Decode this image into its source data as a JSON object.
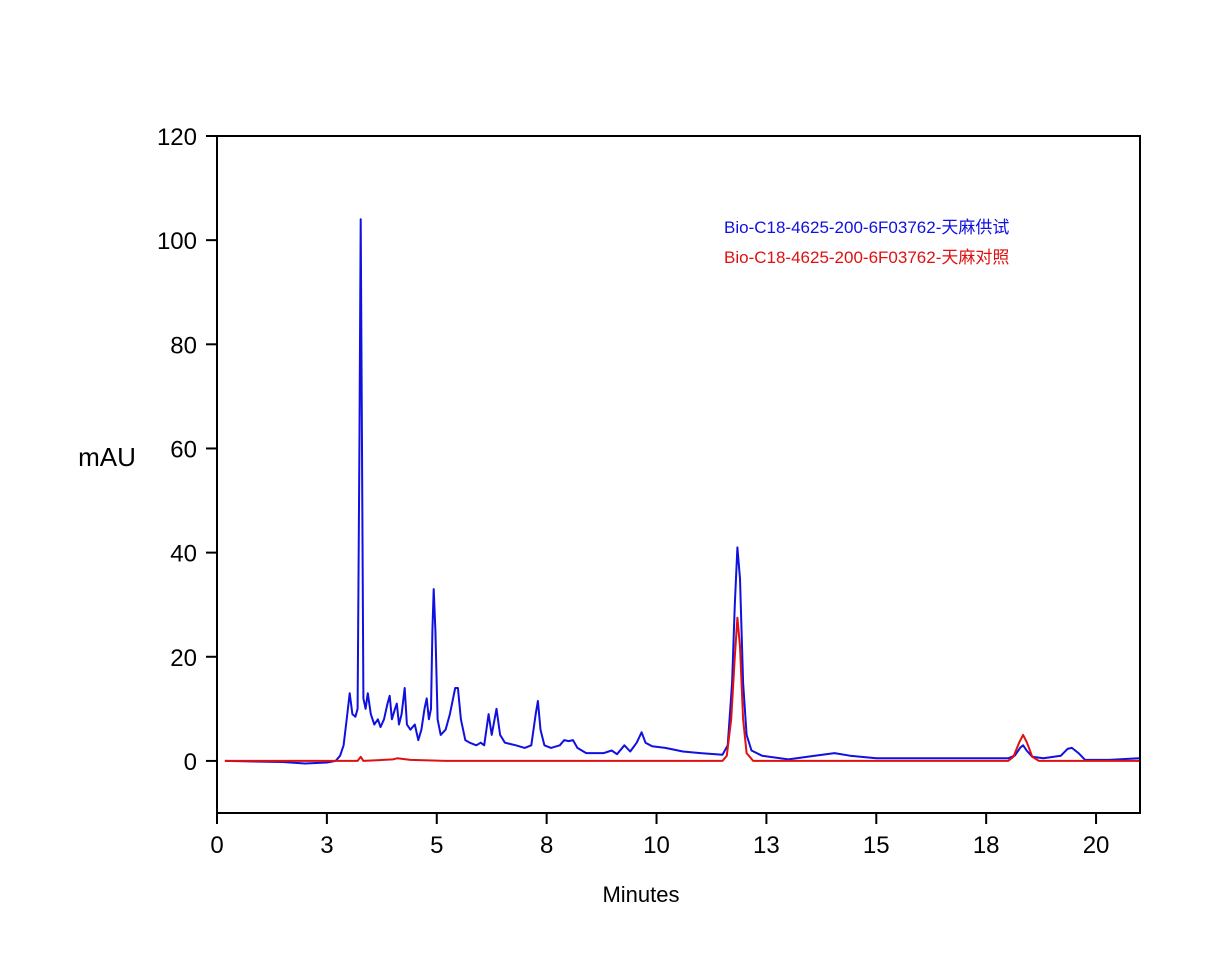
{
  "chart_data": {
    "type": "line",
    "title": "",
    "xlabel": "Minutes",
    "ylabel": "mAU",
    "xlim": [
      0,
      21
    ],
    "ylim": [
      -10,
      120
    ],
    "grid": false,
    "legend_position": "top-right",
    "x_ticks": [
      {
        "value": 0,
        "label": "0"
      },
      {
        "value": 2.5,
        "label": "3"
      },
      {
        "value": 5,
        "label": "5"
      },
      {
        "value": 7.5,
        "label": "8"
      },
      {
        "value": 10,
        "label": "10"
      },
      {
        "value": 12.5,
        "label": "13"
      },
      {
        "value": 15,
        "label": "15"
      },
      {
        "value": 17.5,
        "label": "18"
      },
      {
        "value": 20,
        "label": "20"
      }
    ],
    "y_ticks": [
      {
        "value": 0,
        "label": "0"
      },
      {
        "value": 20,
        "label": "20"
      },
      {
        "value": 40,
        "label": "40"
      },
      {
        "value": 60,
        "label": "60"
      },
      {
        "value": 80,
        "label": "80"
      },
      {
        "value": 100,
        "label": "100"
      },
      {
        "value": 120,
        "label": "120"
      }
    ],
    "series": [
      {
        "name": "Bio-C18-4625-200-6F03762-天麻供试",
        "color": "#1010e0",
        "points": [
          [
            0.18,
            0
          ],
          [
            1.5,
            -0.2
          ],
          [
            2.0,
            -0.5
          ],
          [
            2.5,
            -0.3
          ],
          [
            2.7,
            0
          ],
          [
            2.8,
            1
          ],
          [
            2.88,
            3
          ],
          [
            2.95,
            8
          ],
          [
            3.02,
            13
          ],
          [
            3.08,
            9
          ],
          [
            3.15,
            8.5
          ],
          [
            3.2,
            10
          ],
          [
            3.24,
            60
          ],
          [
            3.27,
            104
          ],
          [
            3.3,
            60
          ],
          [
            3.33,
            12
          ],
          [
            3.38,
            10
          ],
          [
            3.43,
            13
          ],
          [
            3.5,
            9
          ],
          [
            3.58,
            7
          ],
          [
            3.66,
            8
          ],
          [
            3.72,
            6.5
          ],
          [
            3.8,
            8
          ],
          [
            3.88,
            11
          ],
          [
            3.93,
            12.5
          ],
          [
            3.98,
            8
          ],
          [
            4.05,
            10
          ],
          [
            4.09,
            11
          ],
          [
            4.14,
            7
          ],
          [
            4.2,
            9
          ],
          [
            4.27,
            14
          ],
          [
            4.32,
            7
          ],
          [
            4.4,
            6
          ],
          [
            4.5,
            7
          ],
          [
            4.58,
            4
          ],
          [
            4.65,
            6
          ],
          [
            4.72,
            10
          ],
          [
            4.77,
            12
          ],
          [
            4.82,
            8
          ],
          [
            4.87,
            10
          ],
          [
            4.9,
            25
          ],
          [
            4.93,
            33
          ],
          [
            4.97,
            25
          ],
          [
            5.02,
            8
          ],
          [
            5.09,
            5
          ],
          [
            5.2,
            6
          ],
          [
            5.3,
            9
          ],
          [
            5.42,
            14
          ],
          [
            5.48,
            14
          ],
          [
            5.55,
            8
          ],
          [
            5.65,
            4
          ],
          [
            5.75,
            3.5
          ],
          [
            5.9,
            3
          ],
          [
            6.0,
            3.5
          ],
          [
            6.08,
            3
          ],
          [
            6.18,
            9
          ],
          [
            6.25,
            5
          ],
          [
            6.36,
            10
          ],
          [
            6.44,
            5
          ],
          [
            6.55,
            3.5
          ],
          [
            6.8,
            3
          ],
          [
            7.0,
            2.5
          ],
          [
            7.15,
            3
          ],
          [
            7.25,
            9
          ],
          [
            7.3,
            11.5
          ],
          [
            7.36,
            6
          ],
          [
            7.45,
            3
          ],
          [
            7.6,
            2.5
          ],
          [
            7.8,
            3
          ],
          [
            7.9,
            4
          ],
          [
            8.0,
            3.8
          ],
          [
            8.1,
            4
          ],
          [
            8.2,
            2.5
          ],
          [
            8.4,
            1.5
          ],
          [
            8.6,
            1.5
          ],
          [
            8.8,
            1.5
          ],
          [
            8.98,
            2
          ],
          [
            9.1,
            1.3
          ],
          [
            9.27,
            3
          ],
          [
            9.4,
            1.8
          ],
          [
            9.55,
            3.5
          ],
          [
            9.66,
            5.5
          ],
          [
            9.75,
            3.5
          ],
          [
            9.9,
            2.8
          ],
          [
            10.2,
            2.5
          ],
          [
            10.6,
            1.8
          ],
          [
            11.0,
            1.5
          ],
          [
            11.5,
            1.2
          ],
          [
            11.62,
            3
          ],
          [
            11.72,
            15
          ],
          [
            11.78,
            30
          ],
          [
            11.84,
            41
          ],
          [
            11.9,
            35
          ],
          [
            11.97,
            15
          ],
          [
            12.05,
            5
          ],
          [
            12.16,
            2
          ],
          [
            12.4,
            1
          ],
          [
            13.0,
            0.3
          ],
          [
            13.6,
            1
          ],
          [
            14.05,
            1.5
          ],
          [
            14.4,
            1
          ],
          [
            15.0,
            0.5
          ],
          [
            16.0,
            0.5
          ],
          [
            17.0,
            0.5
          ],
          [
            18.0,
            0.5
          ],
          [
            18.15,
            1
          ],
          [
            18.28,
            2.6
          ],
          [
            18.34,
            3
          ],
          [
            18.42,
            2
          ],
          [
            18.55,
            0.8
          ],
          [
            18.8,
            0.5
          ],
          [
            19.2,
            1
          ],
          [
            19.35,
            2.3
          ],
          [
            19.45,
            2.5
          ],
          [
            19.6,
            1.5
          ],
          [
            19.75,
            0.2
          ],
          [
            20.3,
            0.2
          ],
          [
            20.98,
            0.5
          ]
        ]
      },
      {
        "name": "Bio-C18-4625-200-6F03762-天麻对照",
        "color": "#e01010",
        "points": [
          [
            0.18,
            0
          ],
          [
            3.2,
            0
          ],
          [
            3.27,
            0.8
          ],
          [
            3.33,
            0
          ],
          [
            4.0,
            0.3
          ],
          [
            4.1,
            0.5
          ],
          [
            4.4,
            0.2
          ],
          [
            5.2,
            0
          ],
          [
            11.5,
            0
          ],
          [
            11.6,
            1
          ],
          [
            11.7,
            8
          ],
          [
            11.78,
            20
          ],
          [
            11.84,
            27.5
          ],
          [
            11.9,
            22
          ],
          [
            11.97,
            8
          ],
          [
            12.05,
            1.5
          ],
          [
            12.2,
            0
          ],
          [
            18.0,
            0
          ],
          [
            18.12,
            0.8
          ],
          [
            18.25,
            3.5
          ],
          [
            18.34,
            5
          ],
          [
            18.43,
            3.5
          ],
          [
            18.55,
            0.8
          ],
          [
            18.7,
            0
          ],
          [
            20.98,
            0
          ]
        ]
      }
    ]
  }
}
